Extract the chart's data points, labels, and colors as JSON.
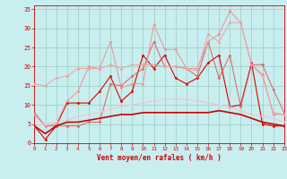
{
  "x": [
    0,
    1,
    2,
    3,
    4,
    5,
    6,
    7,
    8,
    9,
    10,
    11,
    12,
    13,
    14,
    15,
    16,
    17,
    18,
    19,
    20,
    21,
    22,
    23
  ],
  "series": [
    {
      "name": "line_dark_red_spiky",
      "color": "#dd0000",
      "linewidth": 0.8,
      "marker": "D",
      "markersize": 1.5,
      "y": [
        4.5,
        1.0,
        4.5,
        10.5,
        10.5,
        10.5,
        13.5,
        17.5,
        11.0,
        13.5,
        23.0,
        19.5,
        23.0,
        17.0,
        15.5,
        17.0,
        21.0,
        23.0,
        9.5,
        10.0,
        21.0,
        5.0,
        4.5,
        4.5
      ]
    },
    {
      "name": "line_medium_red",
      "color": "#e06060",
      "linewidth": 0.7,
      "marker": "D",
      "markersize": 1.5,
      "y": [
        8.0,
        4.5,
        4.5,
        4.5,
        4.5,
        5.5,
        5.5,
        15.5,
        15.0,
        17.5,
        19.5,
        26.5,
        20.0,
        20.0,
        19.5,
        17.5,
        26.5,
        17.0,
        23.0,
        9.5,
        20.5,
        20.5,
        14.0,
        8.0
      ]
    },
    {
      "name": "line_pink_high",
      "color": "#f09090",
      "linewidth": 0.7,
      "marker": "D",
      "markersize": 1.5,
      "y": [
        7.5,
        4.5,
        5.0,
        11.0,
        13.5,
        20.0,
        19.5,
        26.5,
        14.5,
        15.5,
        15.5,
        31.0,
        24.5,
        24.5,
        19.5,
        19.5,
        26.5,
        28.5,
        34.5,
        31.5,
        20.5,
        18.0,
        7.5,
        7.5
      ]
    },
    {
      "name": "line_light_pink_smooth",
      "color": "#f0a0a0",
      "linewidth": 0.7,
      "marker": "D",
      "markersize": 1.5,
      "y": [
        15.5,
        15.0,
        17.0,
        17.5,
        19.5,
        19.5,
        19.5,
        20.5,
        19.5,
        20.5,
        20.5,
        20.5,
        20.0,
        20.0,
        19.5,
        19.0,
        28.5,
        26.5,
        31.5,
        31.5,
        20.5,
        17.5,
        8.0,
        7.5
      ]
    },
    {
      "name": "line_faint_pink",
      "color": "#f8c0c0",
      "linewidth": 0.7,
      "marker": "D",
      "markersize": 1.0,
      "y": [
        4.5,
        5.0,
        5.5,
        6.0,
        7.0,
        7.5,
        8.0,
        9.0,
        9.5,
        10.0,
        10.5,
        11.0,
        11.5,
        11.5,
        11.5,
        11.0,
        10.5,
        10.0,
        9.5,
        8.5,
        7.5,
        7.0,
        6.5,
        5.5
      ]
    },
    {
      "name": "line_solid_smooth_red",
      "color": "#cc0000",
      "linewidth": 1.2,
      "marker": null,
      "markersize": 0,
      "linestyle": "-",
      "y": [
        4.5,
        2.5,
        4.5,
        5.5,
        5.5,
        6.0,
        6.5,
        7.0,
        7.5,
        7.5,
        8.0,
        8.0,
        8.0,
        8.0,
        8.0,
        8.0,
        8.0,
        8.5,
        8.0,
        7.5,
        6.5,
        5.5,
        5.0,
        4.5
      ]
    }
  ],
  "xlim": [
    0,
    23
  ],
  "ylim": [
    0,
    36
  ],
  "yticks": [
    0,
    5,
    10,
    15,
    20,
    25,
    30,
    35
  ],
  "xticks": [
    0,
    1,
    2,
    3,
    4,
    5,
    6,
    7,
    8,
    9,
    10,
    11,
    12,
    13,
    14,
    15,
    16,
    17,
    18,
    19,
    20,
    21,
    22,
    23
  ],
  "xlabel": "Vent moyen/en rafales ( km/h )",
  "background_color": "#c8eef0",
  "grid_color": "#99ccbb",
  "tick_color": "#cc0000",
  "label_color": "#cc0000"
}
